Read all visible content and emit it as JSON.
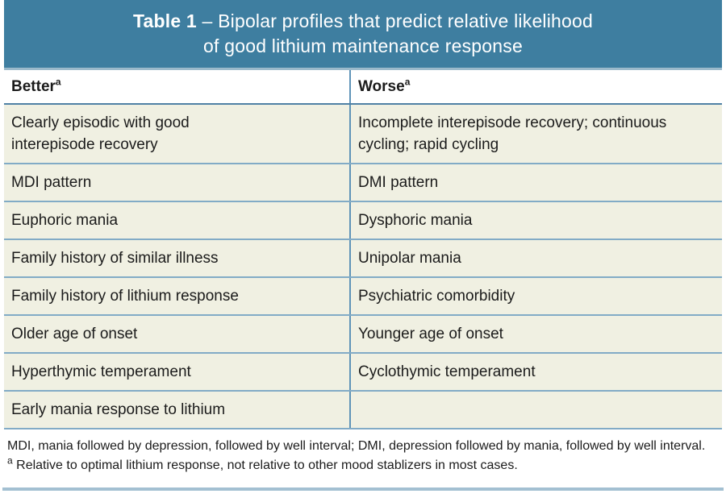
{
  "colors": {
    "banner_bg": "#3e7ea0",
    "banner_text": "#ffffff",
    "row_bg": "#f0f0e2",
    "header_row_bg": "#ffffff",
    "column_divider": "#5f94b8",
    "row_separator": "#82abc6",
    "header_separator": "#4f81a5",
    "bottom_rule": "#3d6f93",
    "body_text": "#1b1b1b"
  },
  "title": {
    "prefix": "Table 1",
    "rest_line1": "– Bipolar profiles that predict relative likelihood",
    "line2": "of good lithium maintenance response"
  },
  "table": {
    "columns": [
      {
        "label": "Better",
        "sup": "a"
      },
      {
        "label": "Worse",
        "sup": "a"
      }
    ],
    "rows": [
      {
        "better": "Clearly episodic with good interepisode recovery",
        "worse": "Incomplete interepisode recovery; continuous cycling; rapid cycling"
      },
      {
        "better": "MDI pattern",
        "worse": "DMI pattern"
      },
      {
        "better": "Euphoric mania",
        "worse": "Dysphoric mania"
      },
      {
        "better": "Family history of similar illness",
        "worse": "Unipolar mania"
      },
      {
        "better": "Family history of lithium response",
        "worse": "Psychiatric comorbidity"
      },
      {
        "better": "Older age of onset",
        "worse": "Younger age of onset"
      },
      {
        "better": "Hyperthymic temperament",
        "worse": "Cyclothymic temperament"
      },
      {
        "better": "Early mania response to lithium",
        "worse": ""
      }
    ]
  },
  "footnotes": {
    "abbreviations": "MDI, mania followed by depression, followed by well interval; DMI, depression followed by mania, followed by well interval.",
    "note_sup": "a",
    "note": "Relative to optimal lithium response, not relative to other mood stablizers in most cases."
  },
  "chart_data": {
    "type": "table",
    "title": "Table 1 – Bipolar profiles that predict relative likelihood of good lithium maintenance response",
    "columns": [
      "Better",
      "Worse"
    ],
    "rows": [
      [
        "Clearly episodic with good interepisode recovery",
        "Incomplete interepisode recovery; continuous cycling; rapid cycling"
      ],
      [
        "MDI pattern",
        "DMI pattern"
      ],
      [
        "Euphoric mania",
        "Dysphoric mania"
      ],
      [
        "Family history of similar illness",
        "Unipolar mania"
      ],
      [
        "Family history of lithium response",
        "Psychiatric comorbidity"
      ],
      [
        "Older age of onset",
        "Younger age of onset"
      ],
      [
        "Hyperthymic temperament",
        "Cyclothymic temperament"
      ],
      [
        "Early mania response to lithium",
        ""
      ]
    ]
  }
}
